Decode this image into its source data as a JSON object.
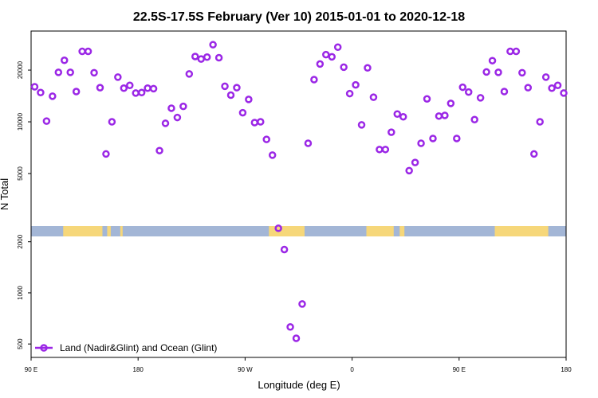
{
  "chart_data": {
    "type": "scatter",
    "title": "22.5S-17.5S February (Ver 10)   2015-01-01 to 2020-12-18",
    "xlabel": "Longitude (deg E)",
    "ylabel": "N Total",
    "y_scale": "log",
    "x_range_deg_east": [
      90,
      540
    ],
    "x_ticks": [
      {
        "value": 90,
        "label": "90 E"
      },
      {
        "value": 180,
        "label": "180"
      },
      {
        "value": 270,
        "label": "90 W"
      },
      {
        "value": 360,
        "label": "0"
      },
      {
        "value": 450,
        "label": "90 E"
      },
      {
        "value": 540,
        "label": "180"
      }
    ],
    "y_ticks": [
      {
        "value": 500,
        "label": "500"
      },
      {
        "value": 1000,
        "label": "1000"
      },
      {
        "value": 2000,
        "label": "2000"
      },
      {
        "value": 5000,
        "label": "5000"
      },
      {
        "value": 10000,
        "label": "10000"
      },
      {
        "value": 20000,
        "label": "20000"
      }
    ],
    "grid": false,
    "legend_position": "bottom-left",
    "land_ocean_band": {
      "ocean_color": "#a3b6d6",
      "land_color": "#f6d77a",
      "land_segments": [
        [
          117,
          150
        ],
        [
          154,
          157
        ],
        [
          165,
          167
        ],
        [
          290,
          320
        ],
        [
          372,
          395
        ],
        [
          400,
          404
        ],
        [
          480,
          525
        ]
      ]
    },
    "series": [
      {
        "name": "Land (Nadir&Glint) and Ocean (Glint)",
        "color": "#9b27e6",
        "x": [
          93,
          98,
          103,
          108,
          113,
          118,
          123,
          128,
          133,
          138,
          143,
          148,
          153,
          158,
          163,
          168,
          173,
          178,
          183,
          188,
          193,
          198,
          203,
          208,
          213,
          218,
          223,
          228,
          233,
          238,
          243,
          248,
          253,
          258,
          263,
          268,
          273,
          278,
          283,
          288,
          293,
          298,
          303,
          308,
          313,
          318,
          323,
          328,
          333,
          338,
          343,
          348,
          353,
          358,
          363,
          368,
          373,
          378,
          383,
          388,
          393,
          398,
          403,
          408,
          413,
          418,
          423,
          428,
          433,
          438,
          443,
          448,
          453,
          458,
          463,
          468,
          473,
          478,
          483,
          488,
          493,
          498,
          503,
          508,
          513,
          518,
          523,
          528,
          533,
          538
        ],
        "y": [
          16000,
          14800,
          10100,
          14100,
          19400,
          22800,
          19400,
          15000,
          25700,
          25700,
          19300,
          15800,
          6500,
          10000,
          18200,
          15700,
          16300,
          14700,
          14800,
          15700,
          15600,
          6800,
          9800,
          12000,
          10600,
          12300,
          19000,
          24000,
          23200,
          23800,
          28100,
          23600,
          16100,
          14300,
          15800,
          11300,
          13500,
          9900,
          10000,
          7900,
          6400,
          2400,
          1800,
          630,
          540,
          860,
          7500,
          17600,
          21700,
          24600,
          23900,
          27200,
          20800,
          14600,
          16400,
          9600,
          20600,
          13900,
          6900,
          6900,
          8700,
          11100,
          10700,
          5200,
          5800,
          7500,
          13600,
          8000,
          10800,
          10900,
          12800,
          8000,
          15900,
          14900,
          10300,
          13800,
          19500,
          22700,
          19400,
          15000,
          25700,
          25700,
          19300,
          15800,
          6500,
          10000,
          18200,
          15700,
          16300,
          14700
        ]
      }
    ]
  }
}
